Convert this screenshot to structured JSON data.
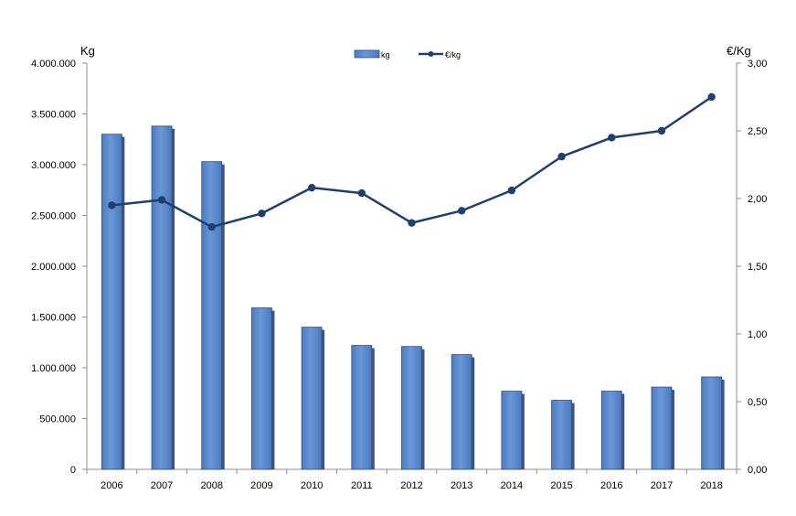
{
  "chart_data": {
    "type": "bar+line",
    "categories": [
      "2006",
      "2007",
      "2008",
      "2009",
      "2010",
      "2011",
      "2012",
      "2013",
      "2014",
      "2015",
      "2016",
      "2017",
      "2018"
    ],
    "series": [
      {
        "name": "kg",
        "type": "bar",
        "axis": "left",
        "values": [
          3300000,
          3380000,
          3030000,
          1590000,
          1400000,
          1220000,
          1210000,
          1130000,
          770000,
          680000,
          770000,
          810000,
          910000
        ]
      },
      {
        "name": "€/kg",
        "type": "line",
        "axis": "right",
        "values": [
          1.95,
          1.99,
          1.79,
          1.89,
          2.08,
          2.04,
          1.82,
          1.91,
          2.06,
          2.31,
          2.45,
          2.5,
          2.75
        ]
      }
    ],
    "ylabel_left": "Kg",
    "ylabel_right": "€/Kg",
    "ylim_left": [
      0,
      4000000
    ],
    "ylim_right": [
      0,
      3
    ],
    "yticks_left": [
      "0",
      "500.000",
      "1.000.000",
      "1.500.000",
      "2.000.000",
      "2.500.000",
      "3.000.000",
      "3.500.000",
      "4.000.000"
    ],
    "yticks_right": [
      "0,00",
      "0,50",
      "1,00",
      "1,50",
      "2,00",
      "2,50",
      "3,00"
    ],
    "grid": false,
    "legend_position": "top-center",
    "colors": {
      "bar": "#5b8bd0",
      "bar_edge": "#2c4f86",
      "bar_shadow": "#1f3760",
      "line": "#1f3f6e",
      "axis": "#8c8c8c"
    }
  }
}
